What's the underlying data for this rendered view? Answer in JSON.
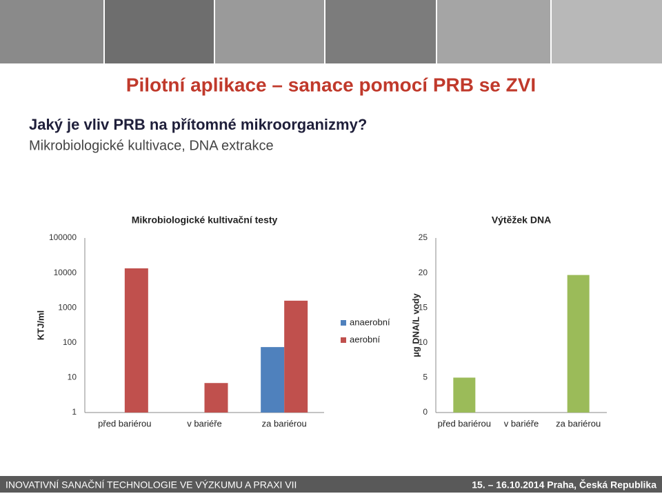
{
  "slide": {
    "title": "Pilotní aplikace – sanace pomocí PRB se ZVI",
    "question": "Jaký je vliv PRB na přítomné mikroorganizmy?",
    "subtitle": "Mikrobiologické kultivace, DNA extrakce",
    "footer_left": "INOVATIVNÍ SANAČNÍ TECHNOLOGIE VE VÝZKUMU A PRAXI VII",
    "footer_right": "15. – 16.10.2014 Praha, Česká Republika"
  },
  "chart_data": [
    {
      "type": "bar",
      "title": "Mikrobiologické kultivační testy",
      "ylabel": "KTJ/ml",
      "categories": [
        "před bariérou",
        "v bariéře",
        "za bariérou"
      ],
      "series": [
        {
          "name": "anaerobní",
          "color": "#4f81bd",
          "values": [
            null,
            null,
            75
          ]
        },
        {
          "name": "aerobní",
          "color": "#c0504d",
          "values": [
            13500,
            7,
            1600
          ]
        }
      ],
      "log": true,
      "ylim": [
        1,
        100000
      ],
      "yticks": [
        1,
        10,
        100,
        1000,
        10000,
        100000
      ],
      "legend": "right"
    },
    {
      "type": "bar",
      "title": "Výtěžek DNA",
      "ylabel": "µg DNA/L vody",
      "categories": [
        "před bariérou",
        "v bariéře",
        "za bariérou"
      ],
      "values": [
        5,
        null,
        19.7
      ],
      "color": "#9bbb59",
      "ylim": [
        0,
        25
      ],
      "yticks": [
        0,
        5,
        10,
        15,
        20,
        25
      ]
    }
  ]
}
